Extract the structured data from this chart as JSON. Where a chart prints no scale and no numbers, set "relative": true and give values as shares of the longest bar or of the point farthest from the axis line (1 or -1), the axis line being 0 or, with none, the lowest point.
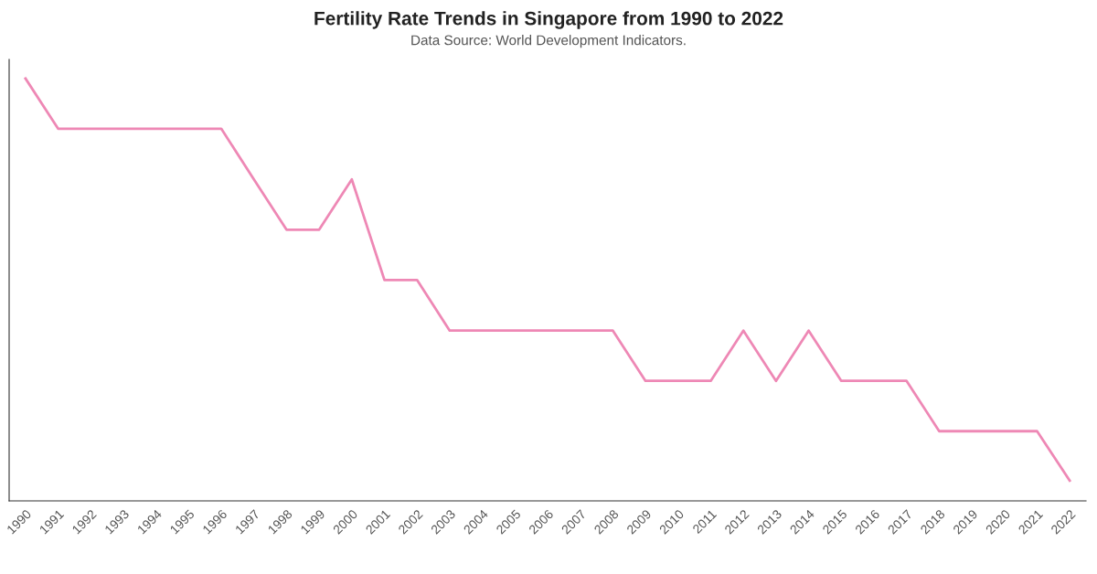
{
  "chart_data": {
    "type": "line",
    "title": "Fertility Rate Trends in Singapore from 1990 to 2022",
    "subtitle": "Data Source: World Development Indicators.",
    "relative": true,
    "categories": [
      "1990",
      "1991",
      "1992",
      "1993",
      "1994",
      "1995",
      "1996",
      "1997",
      "1998",
      "1999",
      "2000",
      "2001",
      "2002",
      "2003",
      "2004",
      "2005",
      "2006",
      "2007",
      "2008",
      "2009",
      "2010",
      "2011",
      "2012",
      "2013",
      "2014",
      "2015",
      "2016",
      "2017",
      "2018",
      "2019",
      "2020",
      "2021",
      "2022"
    ],
    "series": [
      {
        "color": "#ee88b5",
        "values": [
          1,
          0.881,
          0.881,
          0.881,
          0.881,
          0.881,
          0.881,
          0.761,
          0.642,
          0.642,
          0.761,
          0.523,
          0.523,
          0.403,
          0.403,
          0.403,
          0.403,
          0.403,
          0.403,
          0.284,
          0.284,
          0.284,
          0.403,
          0.284,
          0.403,
          0.284,
          0.284,
          0.284,
          0.165,
          0.165,
          0.165,
          0.165,
          0.048
        ]
      }
    ],
    "grid": false,
    "legend": false,
    "marker": "none",
    "line_style": "solid"
  }
}
